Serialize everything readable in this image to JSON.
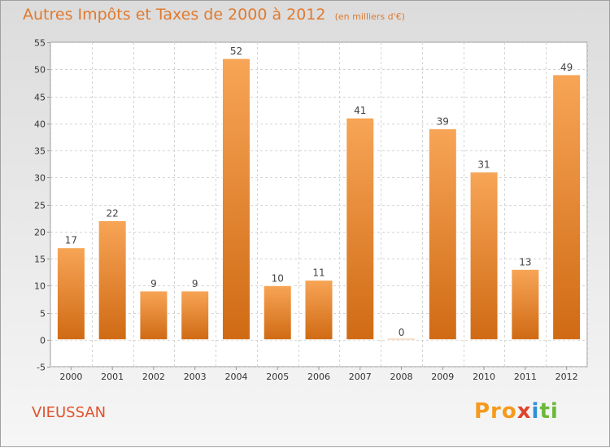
{
  "header": {
    "title": "Autres Impôts et Taxes de 2000 à 2012",
    "unit": "(en milliers d'€)"
  },
  "footer": {
    "commune": "VIEUSSAN",
    "logo_parts": [
      "Pro",
      "x",
      "i",
      "ti"
    ]
  },
  "colors": {
    "bar_light": "#f7a556",
    "bar_dark": "#d06a14",
    "title": "#e07a2f",
    "commune": "#e0532b"
  },
  "chart_data": {
    "type": "bar",
    "title": "Autres Impôts et Taxes de 2000 à 2012",
    "subtitle": "(en milliers d'€)",
    "categories": [
      "2000",
      "2001",
      "2002",
      "2003",
      "2004",
      "2005",
      "2006",
      "2007",
      "2008",
      "2009",
      "2010",
      "2011",
      "2012"
    ],
    "values": [
      17,
      22,
      9,
      9,
      52,
      10,
      11,
      41,
      0,
      39,
      31,
      13,
      49
    ],
    "ylim": [
      -5,
      55
    ],
    "yticks": [
      -5,
      0,
      5,
      10,
      15,
      20,
      25,
      30,
      35,
      40,
      45,
      50,
      55
    ],
    "grid": true,
    "legend": "none"
  }
}
